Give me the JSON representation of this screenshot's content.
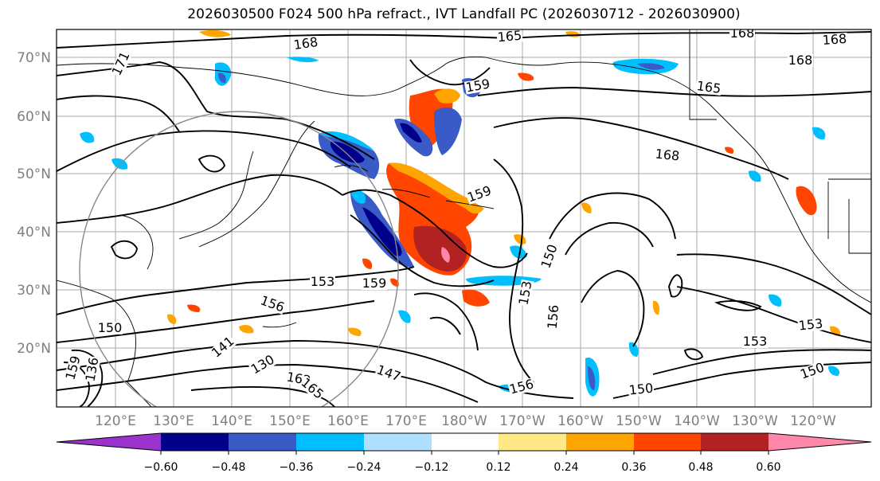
{
  "title": "2026030500 F024 500 hPa refract., IVT Landfall PC (2026030712 - 2026030900)",
  "lat_labels": [
    "70°N",
    "60°N",
    "50°N",
    "40°N",
    "30°N",
    "20°N"
  ],
  "lon_labels": [
    "120°E",
    "130°E",
    "140°E",
    "150°E",
    "160°E",
    "170°E",
    "180°W",
    "170°W",
    "160°W",
    "150°W",
    "140°W",
    "130°W",
    "120°W"
  ],
  "contour_labels": [
    "168",
    "165",
    "168",
    "168",
    "171",
    "165",
    "168",
    "159",
    "168",
    "150",
    "159",
    "153",
    "153",
    "156",
    "153",
    "159",
    "156",
    "153",
    "141",
    "150",
    "147",
    "159",
    "150",
    "136",
    "130",
    "162",
    "165",
    "156",
    "150"
  ],
  "colorbar": {
    "colors": [
      "#9933cc",
      "#00008b",
      "#3a5bc7",
      "#00bfff",
      "#b0e0ff",
      "#ffffff",
      "#ffe987",
      "#ffa500",
      "#ff4500",
      "#b22222",
      "#ff88aa"
    ],
    "tick_labels": [
      "−0.60",
      "−0.48",
      "−0.36",
      "−0.24",
      "−0.12",
      "0.12",
      "0.24",
      "0.36",
      "0.48",
      "0.60"
    ]
  }
}
